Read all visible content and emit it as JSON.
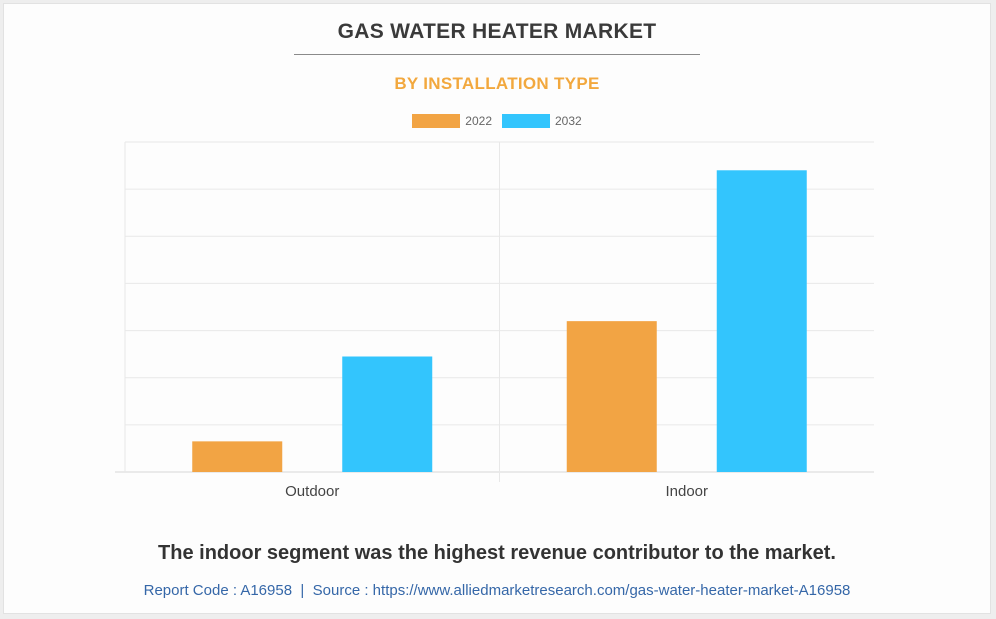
{
  "chart_data": {
    "type": "bar",
    "title": "GAS WATER HEATER MARKET",
    "subtitle": "BY INSTALLATION TYPE",
    "categories": [
      "Outdoor",
      "Indoor"
    ],
    "series": [
      {
        "name": "2022",
        "color": "#f2a444",
        "values": [
          0.65,
          3.2
        ]
      },
      {
        "name": "2032",
        "color": "#33c5fd",
        "values": [
          2.45,
          6.4
        ]
      }
    ],
    "ylim": [
      0,
      7
    ],
    "grid": true,
    "legend_position": "top-center",
    "y_tick_labels_shown": false
  },
  "conclusion": "The indoor segment was the highest revenue contributor to the market.",
  "footer": {
    "report_code": "Report Code : A16958",
    "separator": "|",
    "source": "Source : https://www.alliedmarketresearch.com/gas-water-heater-market-A16958"
  }
}
